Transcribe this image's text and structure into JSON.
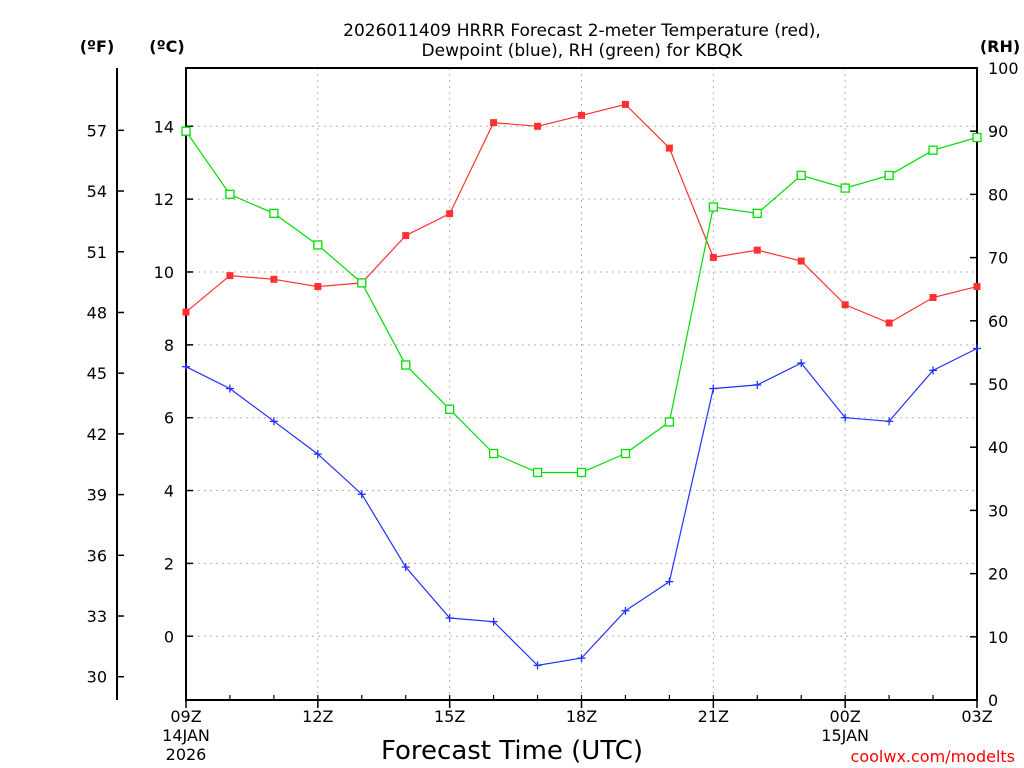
{
  "chart_data": {
    "type": "line",
    "title_lines": [
      "2026011409 HRRR Forecast 2-meter Temperature (red),",
      "Dewpoint (blue), RH (green) for KBQK"
    ],
    "xlabel": "Forecast Time (UTC)",
    "credit": "coolwx.com/modelts",
    "units": {
      "fahrenheit": "(ºF)",
      "celsius": "(ºC)",
      "rh": "(RH)"
    },
    "x_hours": [
      0,
      1,
      2,
      3,
      4,
      5,
      6,
      7,
      8,
      9,
      10,
      11,
      12,
      13,
      14,
      15,
      16,
      17,
      18
    ],
    "x_ticks": [
      {
        "hour": 0,
        "label": "09Z",
        "date": [
          "14JAN",
          "2026"
        ]
      },
      {
        "hour": 3,
        "label": "12Z"
      },
      {
        "hour": 6,
        "label": "15Z"
      },
      {
        "hour": 9,
        "label": "18Z"
      },
      {
        "hour": 12,
        "label": "21Z"
      },
      {
        "hour": 15,
        "label": "00Z",
        "date": [
          "15JAN"
        ]
      },
      {
        "hour": 18,
        "label": "03Z"
      }
    ],
    "ylim_celsius": [
      -1.75,
      15.6
    ],
    "ylim_rh": [
      0,
      100
    ],
    "celsius_ticks": [
      0,
      2,
      4,
      6,
      8,
      10,
      12,
      14
    ],
    "fahrenheit_ticks": [
      30,
      33,
      36,
      39,
      42,
      45,
      48,
      51,
      54,
      57
    ],
    "rh_ticks": [
      0,
      10,
      20,
      30,
      40,
      50,
      60,
      70,
      80,
      90,
      100
    ],
    "grid": true,
    "series": [
      {
        "name": "2-meter Temperature",
        "units": "ºC",
        "color": "#ff3030",
        "marker": "filled-square",
        "axis": "left",
        "values": [
          8.9,
          9.9,
          9.8,
          9.6,
          9.7,
          11.0,
          11.6,
          14.1,
          14.0,
          14.3,
          14.6,
          13.4,
          10.4,
          10.6,
          10.3,
          9.1,
          8.6,
          9.3,
          9.6
        ]
      },
      {
        "name": "Dewpoint",
        "units": "ºC",
        "color": "#2030ff",
        "marker": "plus",
        "axis": "left",
        "values": [
          7.4,
          6.8,
          5.9,
          5.0,
          3.9,
          1.9,
          0.5,
          0.4,
          -0.8,
          -0.6,
          0.7,
          1.5,
          6.8,
          6.9,
          7.5,
          6.0,
          5.9,
          7.3,
          7.9
        ]
      },
      {
        "name": "Relative Humidity",
        "units": "%",
        "color": "#00dd00",
        "marker": "open-square",
        "axis": "right",
        "values": [
          90,
          80,
          77,
          72,
          66,
          53,
          46,
          39,
          36,
          36,
          39,
          44,
          78,
          77,
          83,
          81,
          83,
          87,
          89
        ]
      }
    ]
  }
}
